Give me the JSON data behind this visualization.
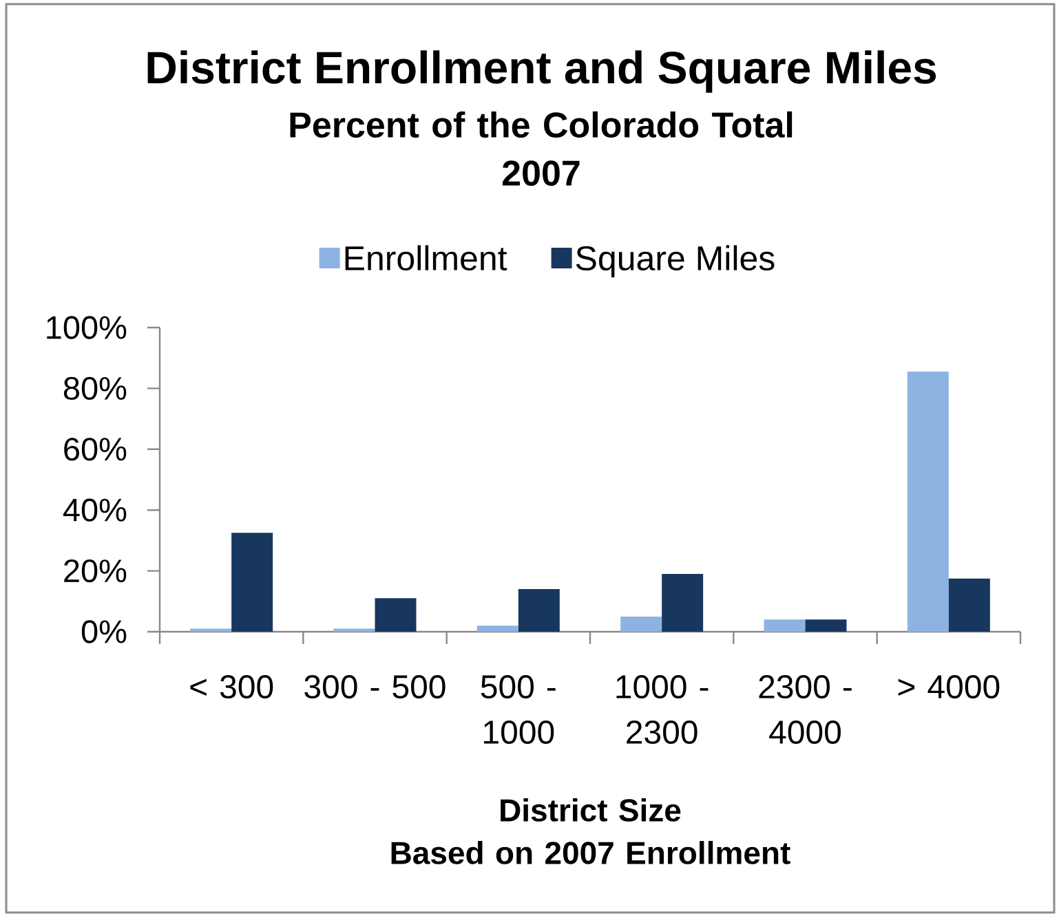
{
  "chart_data": {
    "type": "bar",
    "title": "District Enrollment and Square Miles",
    "subtitle": "Percent of the Colorado Total\n2007",
    "xlabel": "District Size\nBased on 2007 Enrollment",
    "categories": [
      "< 300",
      "300 - 500",
      "500 - 1000",
      "1000 - 2300",
      "2300 - 4000",
      "> 4000"
    ],
    "series": [
      {
        "name": "Enrollment",
        "color": "#8db3e2",
        "values": [
          1,
          1,
          2,
          5,
          4,
          85.5
        ]
      },
      {
        "name": "Square Miles",
        "color": "#17375e",
        "values": [
          32.5,
          11,
          14,
          19,
          4,
          17.5
        ]
      }
    ],
    "ylim": [
      0,
      100
    ],
    "yticks": [
      {
        "value": 0,
        "label": "0%"
      },
      {
        "value": 20,
        "label": "20%"
      },
      {
        "value": 40,
        "label": "40%"
      },
      {
        "value": 60,
        "label": "60%"
      },
      {
        "value": 80,
        "label": "80%"
      },
      {
        "value": 100,
        "label": "100%"
      }
    ],
    "legend": "top"
  }
}
